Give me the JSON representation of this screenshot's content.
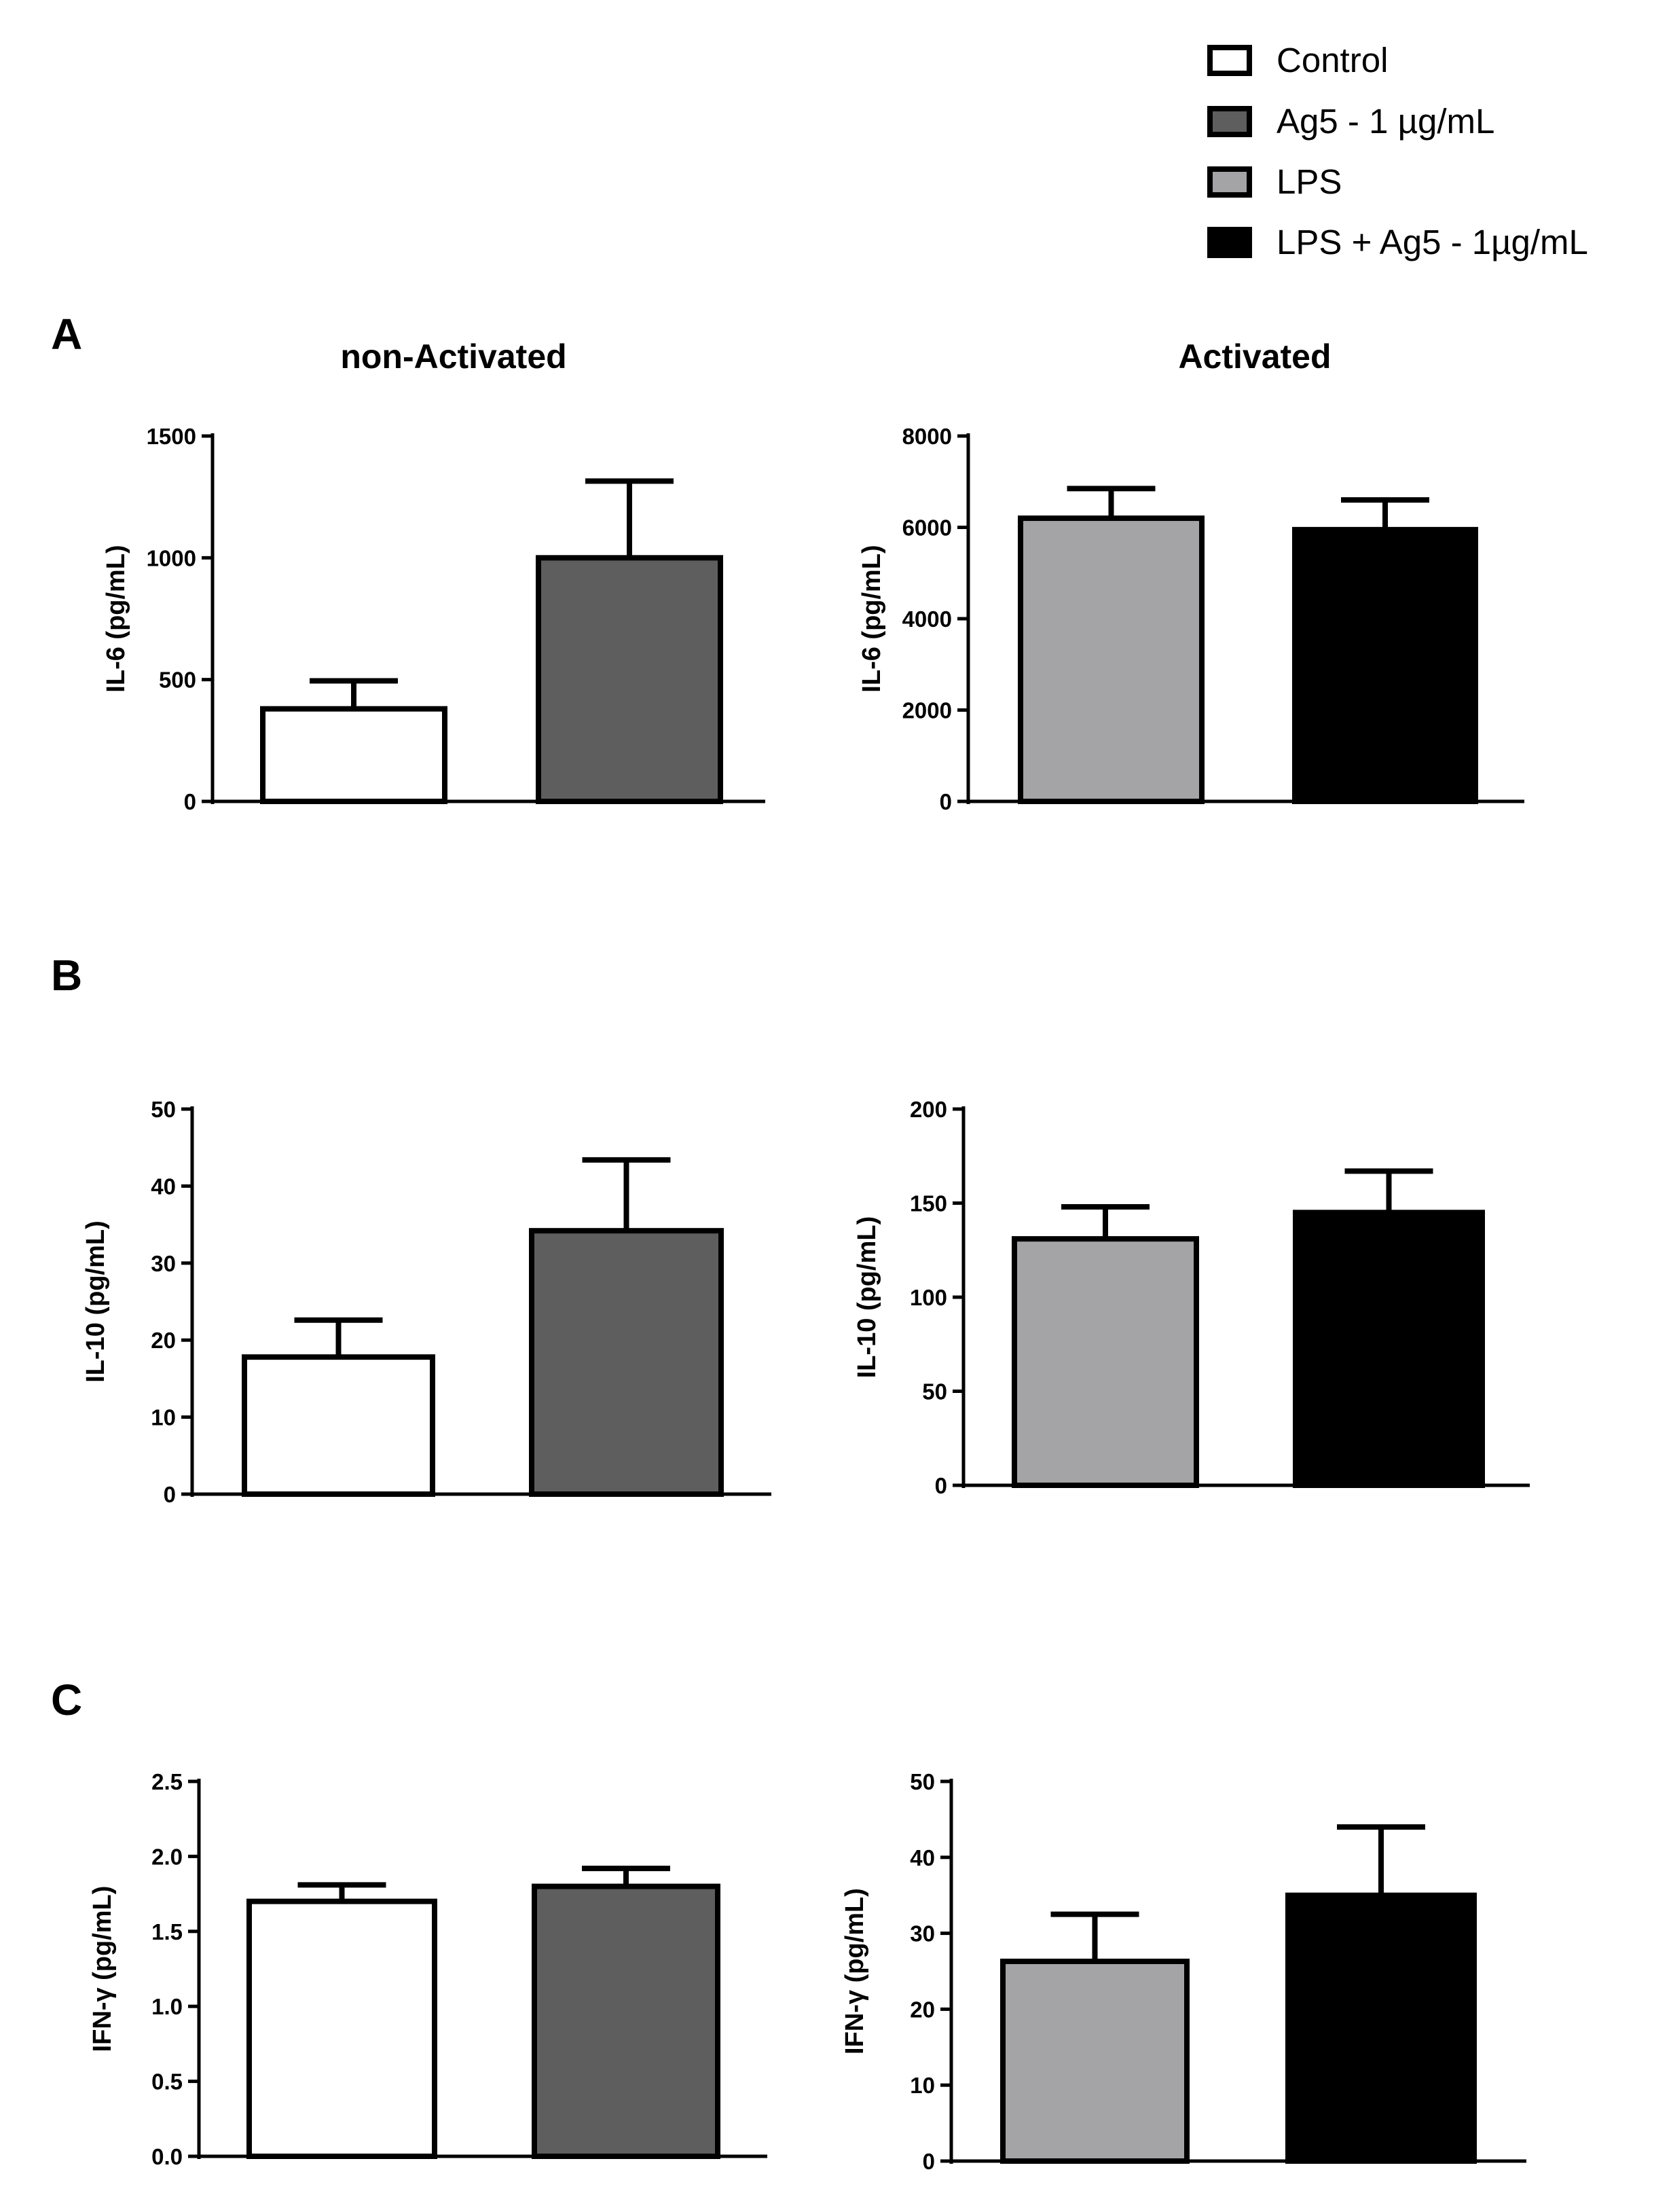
{
  "legend": {
    "items": [
      {
        "label": "Control",
        "color": "#ffffff"
      },
      {
        "label": "Ag5 - 1 µg/mL",
        "color": "#5e5e5e"
      },
      {
        "label": "LPS",
        "color": "#a4a4a6"
      },
      {
        "label": "LPS + Ag5 - 1µg/mL",
        "color": "#000000"
      }
    ]
  },
  "column_titles": [
    "non-Activated",
    "Activated"
  ],
  "panel_letters": [
    "A",
    "B",
    "C"
  ],
  "chart_data": [
    {
      "type": "bar",
      "panel": "A",
      "title": "non-Activated",
      "ylabel": "IL-6 (pg/mL)",
      "ylim": [
        0,
        1500
      ],
      "yticks": [
        "0",
        "500",
        "1000",
        "1500"
      ],
      "ytick_values": [
        0,
        500,
        1000,
        1500
      ],
      "categories": [
        "Control",
        "Ag5 - 1 µg/mL"
      ],
      "values": [
        380,
        1000
      ],
      "errors": [
        115,
        315
      ],
      "colors": [
        "#ffffff",
        "#5e5e5e"
      ]
    },
    {
      "type": "bar",
      "panel": "A",
      "title": "Activated",
      "ylabel": "IL-6 (pg/mL)",
      "ylim": [
        0,
        8000
      ],
      "yticks": [
        "0",
        "2000",
        "4000",
        "6000",
        "8000"
      ],
      "ytick_values": [
        0,
        2000,
        4000,
        6000,
        8000
      ],
      "categories": [
        "LPS",
        "LPS + Ag5 - 1µg/mL"
      ],
      "values": [
        6200,
        5950
      ],
      "errors": [
        650,
        650
      ],
      "colors": [
        "#a4a4a6",
        "#000000"
      ]
    },
    {
      "type": "bar",
      "panel": "B",
      "title": "non-Activated",
      "ylabel": "IL-10 (pg/mL)",
      "ylim": [
        0,
        50
      ],
      "yticks": [
        "0",
        "10",
        "20",
        "30",
        "40",
        "50"
      ],
      "ytick_values": [
        0,
        10,
        20,
        30,
        40,
        50
      ],
      "categories": [
        "Control",
        "Ag5 - 1 µg/mL"
      ],
      "values": [
        17.8,
        34.2
      ],
      "errors": [
        4.8,
        9.2
      ],
      "colors": [
        "#ffffff",
        "#5e5e5e"
      ]
    },
    {
      "type": "bar",
      "panel": "B",
      "title": "Activated",
      "ylabel": "IL-10 (pg/mL)",
      "ylim": [
        0,
        200
      ],
      "yticks": [
        "0",
        "50",
        "100",
        "150",
        "200"
      ],
      "ytick_values": [
        0,
        50,
        100,
        150,
        200
      ],
      "categories": [
        "LPS",
        "LPS + Ag5 - 1µg/mL"
      ],
      "values": [
        131,
        145
      ],
      "errors": [
        17,
        22
      ],
      "colors": [
        "#a4a4a6",
        "#000000"
      ]
    },
    {
      "type": "bar",
      "panel": "C",
      "title": "non-Activated",
      "ylabel": "IFN-γ (pg/mL)",
      "ylim": [
        0,
        2.5
      ],
      "yticks": [
        "0.0",
        "0.5",
        "1.0",
        "1.5",
        "2.0",
        "2.5"
      ],
      "ytick_values": [
        0,
        0.5,
        1.0,
        1.5,
        2.0,
        2.5
      ],
      "categories": [
        "Control",
        "Ag5 - 1 µg/mL"
      ],
      "values": [
        1.7,
        1.8
      ],
      "errors": [
        0.11,
        0.12
      ],
      "colors": [
        "#ffffff",
        "#5e5e5e"
      ]
    },
    {
      "type": "bar",
      "panel": "C",
      "title": "Activated",
      "ylabel": "IFN-γ (pg/mL)",
      "ylim": [
        0,
        50
      ],
      "yticks": [
        "0",
        "10",
        "20",
        "30",
        "40",
        "50"
      ],
      "ytick_values": [
        0,
        10,
        20,
        30,
        40,
        50
      ],
      "categories": [
        "LPS",
        "LPS + Ag5 - 1µg/mL"
      ],
      "values": [
        26.3,
        35.0
      ],
      "errors": [
        6.2,
        9.0
      ],
      "colors": [
        "#a4a4a6",
        "#000000"
      ]
    }
  ]
}
